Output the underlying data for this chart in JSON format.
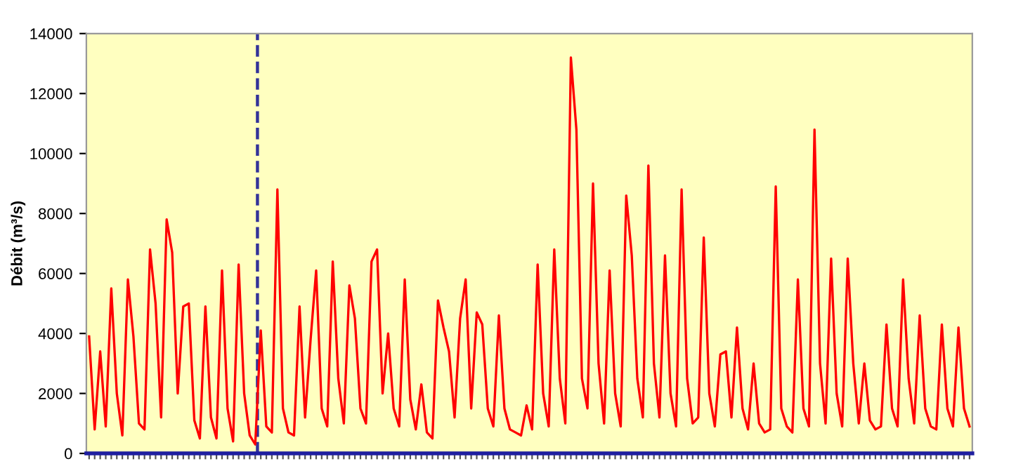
{
  "chart_data": {
    "type": "line",
    "ylabel": "Débit (m³/s)",
    "ylim": [
      0,
      14000
    ],
    "yticks": [
      0,
      2000,
      4000,
      6000,
      8000,
      10000,
      12000,
      14000
    ],
    "grid": false,
    "tick_labels": "y",
    "marker": "none",
    "line_style": "solid",
    "categories": [
      null,
      null,
      null,
      null,
      null,
      null,
      null,
      null,
      null,
      null,
      null,
      null,
      null,
      null,
      null,
      null,
      null,
      null,
      null,
      null,
      null,
      null,
      null,
      null,
      null,
      null,
      null,
      null,
      null,
      null,
      null,
      null,
      null,
      null,
      null,
      null,
      null,
      null,
      null,
      null,
      null,
      null,
      null,
      null,
      null,
      null,
      null,
      null,
      null,
      null,
      null,
      null,
      null,
      null,
      null,
      null,
      null,
      null,
      null,
      null,
      null,
      null,
      null,
      null,
      null,
      null,
      null,
      null,
      null,
      null,
      null,
      null,
      null,
      null,
      null,
      null,
      null,
      null,
      null,
      null,
      null,
      null,
      null,
      null,
      null,
      null,
      null,
      null,
      null,
      null,
      null,
      null,
      null,
      null,
      null,
      null,
      null,
      null,
      null,
      null,
      null,
      null,
      null,
      null,
      null,
      null,
      null,
      null,
      null,
      null,
      null,
      null,
      null,
      null,
      null,
      null,
      null,
      null,
      null,
      null,
      null,
      null,
      null,
      null,
      null,
      null,
      null,
      null,
      null,
      null,
      null,
      null,
      null,
      null,
      null,
      null,
      null,
      null,
      null,
      null,
      null,
      null,
      null,
      null,
      null,
      null,
      null,
      null,
      null,
      null,
      null,
      null,
      null,
      null,
      null,
      null,
      null,
      null,
      null,
      null
    ],
    "series": [
      {
        "color": "#ff0000",
        "values": [
          3900,
          800,
          3400,
          900,
          5500,
          2000,
          600,
          5800,
          3900,
          1000,
          800,
          6800,
          5000,
          1200,
          7800,
          6700,
          2000,
          4900,
          5000,
          1100,
          500,
          4900,
          1200,
          500,
          6100,
          1500,
          400,
          6300,
          2000,
          600,
          300,
          4100,
          900,
          700,
          8800,
          1500,
          700,
          600,
          4900,
          1200,
          3800,
          6100,
          1500,
          900,
          6400,
          2500,
          1000,
          5600,
          4500,
          1500,
          1000,
          6400,
          6800,
          2000,
          4000,
          1500,
          900,
          5800,
          1800,
          800,
          2300,
          700,
          500,
          5100,
          4200,
          3400,
          1200,
          4500,
          5800,
          1500,
          4700,
          4300,
          1500,
          900,
          4600,
          1500,
          800,
          700,
          600,
          1600,
          800,
          6300,
          2000,
          900,
          6800,
          2500,
          1000,
          13200,
          10800,
          2500,
          1500,
          9000,
          3000,
          1000,
          6100,
          2000,
          900,
          8600,
          6600,
          2500,
          1200,
          9600,
          3000,
          1200,
          6600,
          2000,
          900,
          8800,
          2500,
          1000,
          1200,
          7200,
          2000,
          900,
          3300,
          3400,
          1200,
          4200,
          1500,
          800,
          3000,
          1000,
          700,
          800,
          8900,
          1500,
          900,
          700,
          5800,
          1500,
          900,
          10800,
          3000,
          1000,
          6500,
          2000,
          900,
          6500,
          3000,
          1000,
          3000,
          1100,
          800,
          900,
          4300,
          1500,
          900,
          5800,
          2500,
          1000,
          4600,
          1500,
          900,
          800,
          4300,
          1500,
          900,
          4200,
          1500,
          900
        ]
      }
    ]
  }
}
